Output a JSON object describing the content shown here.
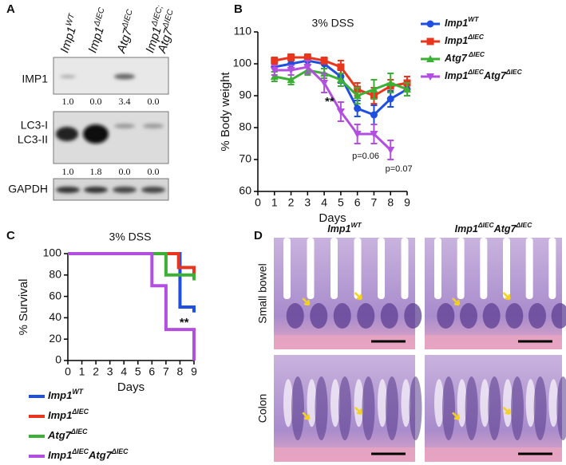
{
  "panel_labels": [
    "A",
    "B",
    "C",
    "D"
  ],
  "blot": {
    "lanes": [
      [
        [
          "Imp1",
          "WT"
        ]
      ],
      [
        [
          "Imp1",
          "ΔIEC"
        ]
      ],
      [
        [
          "Atg7",
          "ΔIEC"
        ]
      ],
      [
        [
          "Imp1",
          "ΔIEC;"
        ],
        [
          "Atg7",
          "ΔIEC"
        ]
      ]
    ],
    "rows": [
      {
        "labels": [
          "IMP1"
        ],
        "quant": [
          "1.0",
          "0.0",
          "3.4",
          "0.0"
        ]
      },
      {
        "labels": [
          "LC3-I",
          "LC3-II"
        ],
        "quant": [
          "1.0",
          "1.8",
          "0.0",
          "0.0"
        ]
      },
      {
        "labels": [
          "GAPDH"
        ]
      }
    ]
  },
  "chart_data": [
    {
      "type": "line",
      "title": "3% DSS",
      "x_label": "Days",
      "y_label": "% Body weight",
      "x": [
        1,
        2,
        3,
        4,
        5,
        6,
        7,
        8,
        9
      ],
      "xlim": [
        0,
        9
      ],
      "xticks": [
        0,
        1,
        2,
        3,
        4,
        5,
        6,
        7,
        8,
        9
      ],
      "ylim": [
        60,
        110
      ],
      "yticks": [
        60,
        70,
        80,
        90,
        100,
        110
      ],
      "annotations": [
        "**",
        "p=0.06",
        "p=0.07"
      ],
      "series": [
        {
          "name": [
            "Imp1",
            "WT"
          ],
          "color": "#1f4fe0",
          "marker": "circle",
          "values": [
            99,
            100,
            101,
            100,
            96,
            86,
            84,
            89,
            92
          ],
          "errors": [
            1.5,
            1.5,
            1.5,
            1.5,
            2,
            2.5,
            3,
            2.5,
            2
          ]
        },
        {
          "name": [
            "Imp1",
            "ΔIEC"
          ],
          "color": "#e8351e",
          "marker": "square",
          "values": [
            101,
            102,
            102,
            101,
            99,
            92,
            90,
            93,
            94
          ],
          "errors": [
            1,
            1,
            1,
            1,
            2,
            2,
            2.5,
            2,
            2
          ]
        },
        {
          "name": [
            "Atg7",
            " ΔIEC"
          ],
          "color": "#3cb034",
          "marker": "triangle",
          "values": [
            96,
            95,
            98,
            97,
            95,
            90,
            92,
            94,
            92
          ],
          "errors": [
            1.5,
            1.5,
            1.5,
            1.5,
            2,
            2.5,
            3,
            3,
            2
          ]
        },
        {
          "name": [
            "Imp1",
            "ΔIEC",
            "Atg7",
            "ΔIEC"
          ],
          "color": "#b34fe0",
          "marker": "down-triangle",
          "values": [
            98,
            98,
            99,
            94,
            85,
            78,
            78,
            73,
            null
          ],
          "errors": [
            1.5,
            1.5,
            2,
            3,
            3,
            3,
            3,
            3,
            null
          ]
        }
      ]
    },
    {
      "type": "step",
      "title": "3% DSS",
      "x_label": "Days",
      "y_label": "% Survival",
      "xlim": [
        0,
        9
      ],
      "xticks": [
        0,
        1,
        2,
        3,
        4,
        5,
        6,
        7,
        8,
        9
      ],
      "ylim": [
        0,
        100
      ],
      "yticks": [
        0,
        20,
        40,
        60,
        80,
        100
      ],
      "annotations": [
        "**"
      ],
      "series": [
        {
          "name": [
            "Imp1",
            "WT"
          ],
          "color": "#1f4fe0",
          "x": [
            0,
            8,
            9
          ],
          "values": [
            100,
            50,
            45
          ]
        },
        {
          "name": [
            "Imp1",
            "ΔIEC"
          ],
          "color": "#e8351e",
          "x": [
            0,
            7.9,
            9
          ],
          "values": [
            100,
            87,
            75
          ]
        },
        {
          "name": [
            "Atg7",
            "ΔIEC"
          ],
          "color": "#3cb034",
          "x": [
            0,
            7,
            9
          ],
          "values": [
            100,
            80,
            75
          ]
        },
        {
          "name": [
            "Imp1",
            "ΔIEC",
            "Atg7",
            "ΔIEC"
          ],
          "color": "#b34fe0",
          "x": [
            0,
            6,
            7,
            9
          ],
          "values": [
            100,
            70,
            29,
            0
          ]
        }
      ]
    }
  ],
  "histology": {
    "columns": [
      [
        "Imp1",
        "WT"
      ],
      [
        "Imp1",
        "ΔIEC",
        "Atg7",
        "ΔIEC"
      ]
    ],
    "rows": [
      "Small bowel",
      "Colon"
    ]
  }
}
